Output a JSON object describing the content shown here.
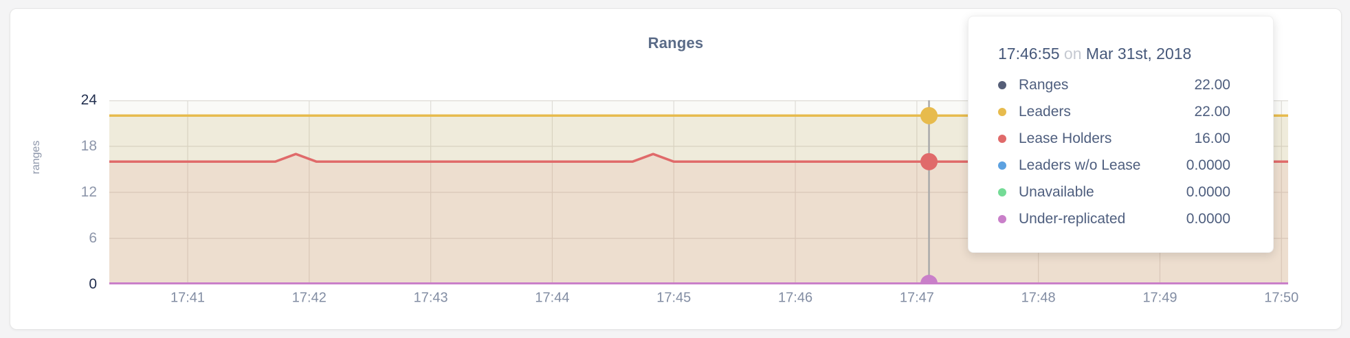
{
  "colors": {
    "page_bg": "#F4F4F5",
    "card_bg": "#FFFFFF",
    "card_border": "#E6E6E6",
    "title": "#5A6B87",
    "axis_tick_dark": "#222F4F",
    "axis_tick_light": "#8D96AA",
    "grid": "#DEDCD6",
    "plot_bg": "#FAFAF7",
    "crosshair": "#A9A9A9",
    "tooltip_text": "#4E5E7E",
    "tooltip_muted": "#C5C9D1"
  },
  "chart_data": {
    "type": "area",
    "title": "Ranges",
    "ylabel": "ranges",
    "x_unit": "minutes after 17:40 on Mar 31st, 2018",
    "x_domain": [
      0.355,
      10.055
    ],
    "ylim": [
      0,
      24
    ],
    "yticks": [
      0,
      6,
      12,
      18,
      24
    ],
    "xticks": [
      {
        "label": "17:41",
        "t": 1
      },
      {
        "label": "17:42",
        "t": 2
      },
      {
        "label": "17:43",
        "t": 3
      },
      {
        "label": "17:44",
        "t": 4
      },
      {
        "label": "17:45",
        "t": 5
      },
      {
        "label": "17:46",
        "t": 6
      },
      {
        "label": "17:47",
        "t": 7
      },
      {
        "label": "17:48",
        "t": 8
      },
      {
        "label": "17:49",
        "t": 9
      },
      {
        "label": "17:50",
        "t": 10
      }
    ],
    "grid": "on",
    "series": [
      {
        "name": "Ranges",
        "color": "#555E77",
        "line_width": 3,
        "fill_opacity": 0.05,
        "points": [
          [
            0.355,
            22
          ],
          [
            10.055,
            22
          ]
        ]
      },
      {
        "name": "Leaders",
        "color": "#E7BB4D",
        "line_width": 3.5,
        "fill_opacity": 0.12,
        "points": [
          [
            0.355,
            22
          ],
          [
            10.055,
            22
          ]
        ]
      },
      {
        "name": "Lease Holders",
        "color": "#E06A6A",
        "line_width": 3.5,
        "fill_opacity": 0.1,
        "points": [
          [
            0.355,
            16
          ],
          [
            1.72,
            16
          ],
          [
            1.89,
            17
          ],
          [
            2.06,
            16
          ],
          [
            4.66,
            16
          ],
          [
            4.83,
            17
          ],
          [
            5.0,
            16
          ],
          [
            10.055,
            16
          ]
        ]
      },
      {
        "name": "Leaders w/o Lease",
        "color": "#5CA1E0",
        "line_width": 2,
        "fill_opacity": 0,
        "points": [
          [
            0.355,
            0
          ],
          [
            10.055,
            0
          ]
        ]
      },
      {
        "name": "Unavailable",
        "color": "#74DB96",
        "line_width": 2,
        "fill_opacity": 0,
        "points": [
          [
            0.355,
            0
          ],
          [
            10.055,
            0
          ]
        ]
      },
      {
        "name": "Under-replicated",
        "color": "#C97FC9",
        "line_width": 3,
        "fill_opacity": 0,
        "points": [
          [
            0.355,
            0
          ],
          [
            10.055,
            0
          ]
        ]
      }
    ],
    "crosshair": {
      "t": 7.1,
      "time": "17:46:55",
      "dots": [
        {
          "series": "Leaders",
          "value": 22
        },
        {
          "series": "Lease Holders",
          "value": 16
        },
        {
          "series": "Under-replicated",
          "value": 0
        }
      ]
    }
  },
  "tooltip": {
    "time": "17:46:55",
    "on_word": "on",
    "date": "Mar 31st, 2018",
    "rows": [
      {
        "label": "Ranges",
        "value": "22.00",
        "color": "#555E77"
      },
      {
        "label": "Leaders",
        "value": "22.00",
        "color": "#E7BB4D"
      },
      {
        "label": "Lease Holders",
        "value": "16.00",
        "color": "#E06A6A"
      },
      {
        "label": "Leaders w/o Lease",
        "value": "0.0000",
        "color": "#5CA1E0"
      },
      {
        "label": "Unavailable",
        "value": "0.0000",
        "color": "#74DB96"
      },
      {
        "label": "Under-replicated",
        "value": "0.0000",
        "color": "#C97FC9"
      }
    ]
  }
}
